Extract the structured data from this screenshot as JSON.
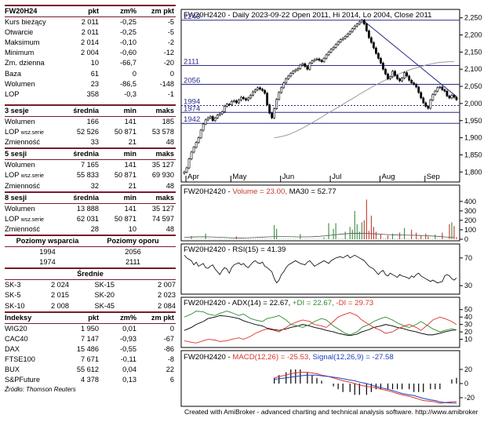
{
  "quote": {
    "header": [
      "FW20H24",
      "pkt",
      "zm%",
      "zm pkt"
    ],
    "rows": [
      [
        "Kurs bieżący",
        "2 011",
        "-0,25",
        "-5"
      ],
      [
        "Otwarcie",
        "2 011",
        "-0,25",
        "-5"
      ],
      [
        "Maksimum",
        "2 014",
        "-0,10",
        "-2"
      ],
      [
        "Minimum",
        "2 004",
        "-0,60",
        "-12"
      ],
      [
        "Zm. dzienna",
        "10",
        "-66,7",
        "-20"
      ],
      [
        "Baza",
        "61",
        "0",
        "0"
      ],
      [
        "Wolumen",
        "23",
        "-86,5",
        "-148"
      ],
      [
        "LOP",
        "358",
        "-0,3",
        "-1"
      ]
    ]
  },
  "sessions": [
    {
      "header": [
        "3 sesje",
        "średnia",
        "min",
        "maks"
      ],
      "rows": [
        [
          "Wolumen",
          "166",
          "141",
          "185"
        ],
        [
          "LOP wsz.serie",
          "52 526",
          "50 871",
          "53 578"
        ],
        [
          "Zmienność",
          "33",
          "21",
          "48"
        ]
      ]
    },
    {
      "header": [
        "5 sesji",
        "średnia",
        "min",
        "maks"
      ],
      "rows": [
        [
          "Wolumen",
          "7 165",
          "141",
          "35 127"
        ],
        [
          "LOP wsz.serie",
          "55 833",
          "50 871",
          "69 930"
        ],
        [
          "Zmienność",
          "32",
          "21",
          "48"
        ]
      ]
    },
    {
      "header": [
        "8 sesji",
        "średnia",
        "min",
        "maks"
      ],
      "rows": [
        [
          "Wolumen",
          "13 888",
          "141",
          "35 127"
        ],
        [
          "LOP wsz.serie",
          "62 031",
          "50 871",
          "74 597"
        ],
        [
          "Zmienność",
          "28",
          "10",
          "48"
        ]
      ]
    }
  ],
  "levels": {
    "support_label": "Poziomy wsparcia",
    "resistance_label": "Poziomy oporu",
    "rows": [
      [
        "1994",
        "2056"
      ],
      [
        "1974",
        "2111"
      ]
    ]
  },
  "averages": {
    "header": "Średnie",
    "rows": [
      [
        "SK-3",
        "2 024",
        "SK-15",
        "2 007"
      ],
      [
        "SK-5",
        "2 015",
        "SK-20",
        "2 023"
      ],
      [
        "SK-10",
        "2 008",
        "SK-45",
        "2 084"
      ]
    ]
  },
  "indices": {
    "header": [
      "Indeksy",
      "pkt",
      "zm%",
      "zm pkt"
    ],
    "rows": [
      [
        "WIG20",
        "1 950",
        "0,01",
        "0"
      ],
      [
        "CAC40",
        "7 147",
        "-0,93",
        "-67"
      ],
      [
        "DAX",
        "15 486",
        "-0,55",
        "-86"
      ],
      [
        "FTSE100",
        "7 671",
        "-0,11",
        "-8"
      ],
      [
        "BUX",
        "55 612",
        "0,04",
        "22"
      ],
      [
        "S&PFuture",
        "4 378",
        "0,13",
        "6"
      ]
    ],
    "source": "Źródło: Thomson Reuters"
  },
  "chart_data": {
    "type": "line",
    "price": {
      "title": "FW20H2420 - Daily 2023-09-22 Open 2011, Hi 2014, Lo 2004, Close 2011",
      "ylim": [
        1780,
        2270
      ],
      "yticks": [
        "1,800",
        "1,850",
        "1,900",
        "1,950",
        "2,000",
        "2,050",
        "2,100",
        "2,150",
        "2,200",
        "2,250"
      ],
      "months": [
        "Apr",
        "May",
        "Jun",
        "Jul",
        "Aug",
        "Sep"
      ],
      "levels": [
        {
          "label": "2243",
          "value": 2243
        },
        {
          "label": "2111",
          "value": 2111
        },
        {
          "label": "2056",
          "value": 2056
        },
        {
          "label": "1994",
          "value": 1994
        },
        {
          "label": "1974",
          "value": 1974
        },
        {
          "label": "1942",
          "value": 1942
        }
      ],
      "close": [
        1800,
        1812,
        1838,
        1858,
        1872,
        1886,
        1900,
        1922,
        1940,
        1952,
        1958,
        1962,
        1950,
        1958,
        1966,
        1970,
        1976,
        1992,
        1998,
        1996,
        2006,
        2008,
        2002,
        2010,
        2018,
        2014,
        2010,
        2016,
        2024,
        2034,
        2040,
        2046,
        2042,
        2038,
        2030,
        1996,
        1972,
        1958,
        1985,
        2012,
        2032,
        2046,
        2060,
        2072,
        2080,
        2088,
        2094,
        2098,
        2102,
        2112,
        2116,
        2108,
        2100,
        2118,
        2124,
        2128,
        2130,
        2126,
        2122,
        2132,
        2142,
        2150,
        2158,
        2164,
        2172,
        2180,
        2186,
        2190,
        2196,
        2203,
        2210,
        2218,
        2226,
        2232,
        2238,
        2243,
        2232,
        2212,
        2192,
        2178,
        2162,
        2146,
        2132,
        2118,
        2100,
        2086,
        2072,
        2078,
        2094,
        2082,
        2072,
        2066,
        2074,
        2090,
        2080,
        2068,
        2060,
        2056,
        2048,
        2032,
        2016,
        2002,
        1992,
        1986,
        2010,
        2026,
        2036,
        2046,
        2048,
        2040,
        2036,
        2022,
        2016,
        2024,
        2018,
        2011
      ],
      "ma_start": [
        1900,
        1902,
        1905,
        1909,
        1915,
        1921,
        1928,
        1936,
        1944,
        1952,
        1960,
        1969,
        1977,
        1985,
        1993,
        2002,
        2010,
        2018,
        2027,
        2035,
        2043,
        2051,
        2058,
        2065,
        2072,
        2078,
        2084,
        2090,
        2095,
        2100,
        2104,
        2108,
        2112,
        2115,
        2118,
        2120,
        2121,
        2122,
        2122
      ],
      "trendline": [
        [
          76,
          2240
        ],
        [
          115,
          2020
        ]
      ]
    },
    "volume": {
      "title_prefix": "FW20H2420 - ",
      "volume_label": "Volume = 23.00,",
      "ma_label": " MA30 = 52.77",
      "yticks": [
        "0",
        "100",
        "200",
        "300",
        "400"
      ],
      "ylim": [
        0,
        440
      ],
      "spikes": [
        [
          3,
          34
        ],
        [
          9,
          60
        ],
        [
          22,
          30
        ],
        [
          38,
          150
        ],
        [
          39,
          110
        ],
        [
          49,
          55
        ],
        [
          59,
          20
        ],
        [
          61,
          170
        ],
        [
          63,
          110
        ],
        [
          64,
          170
        ],
        [
          68,
          80
        ],
        [
          70,
          130
        ],
        [
          71,
          100
        ],
        [
          72,
          300
        ],
        [
          73,
          160
        ],
        [
          74,
          80
        ],
        [
          75,
          180
        ],
        [
          76,
          200
        ],
        [
          77,
          420
        ],
        [
          78,
          90
        ],
        [
          79,
          250
        ],
        [
          80,
          130
        ],
        [
          81,
          80
        ],
        [
          83,
          50
        ],
        [
          86,
          40
        ],
        [
          88,
          60
        ],
        [
          91,
          70
        ],
        [
          93,
          120
        ],
        [
          96,
          100
        ],
        [
          98,
          70
        ],
        [
          100,
          40
        ],
        [
          102,
          60
        ],
        [
          103,
          30
        ],
        [
          106,
          50
        ],
        [
          109,
          70
        ],
        [
          112,
          160
        ],
        [
          113,
          180
        ],
        [
          114,
          140
        ],
        [
          115,
          23
        ]
      ]
    },
    "rsi": {
      "title_prefix": "FW20H2420 - ",
      "label": "RSI(15) = 41.39",
      "yticks": [
        "30",
        "70"
      ],
      "ylim": [
        20,
        80
      ],
      "values": [
        74,
        70,
        68,
        66,
        60,
        64,
        58,
        62,
        56,
        55,
        58,
        60,
        54,
        50,
        46,
        52,
        56,
        54,
        48,
        56,
        60,
        63,
        60,
        62,
        58,
        56,
        60,
        64,
        66,
        63,
        62,
        64,
        58,
        56,
        50,
        40,
        34,
        38,
        46,
        50,
        56,
        60,
        62,
        64,
        66,
        64,
        62,
        60,
        64,
        66,
        62,
        58,
        60,
        62,
        64,
        66,
        64,
        62,
        66,
        68,
        70,
        72,
        70,
        72,
        74,
        70,
        72,
        74,
        72,
        70,
        68,
        66,
        62,
        58,
        54,
        50,
        46,
        50,
        52,
        46,
        44,
        48,
        46,
        44,
        42,
        46,
        44,
        42,
        40,
        44,
        42,
        46,
        48,
        44,
        42,
        40,
        38,
        36,
        38,
        36,
        34,
        36,
        44,
        46,
        44,
        40,
        38,
        41
      ]
    },
    "adx": {
      "title_prefix": "FW20H2420 - ",
      "label": "ADX(14) = 22.67,",
      "plus_label": " +DI = 22.67,",
      "minus_label": " -DI = 29.73",
      "yticks": [
        "10",
        "20",
        "30",
        "40",
        "50"
      ],
      "ylim": [
        0,
        55
      ],
      "adx": [
        22,
        26,
        30,
        34,
        38,
        40,
        42,
        41,
        40,
        38,
        35,
        32,
        30,
        28,
        25,
        23,
        22,
        24,
        26,
        28,
        30,
        28,
        26,
        24,
        22,
        20,
        18,
        16,
        15,
        17,
        20,
        23,
        26,
        28,
        30,
        28,
        26,
        24,
        22,
        20,
        18,
        16,
        16,
        18,
        20,
        22,
        22.67
      ],
      "plus": [
        40,
        44,
        48,
        47,
        44,
        42,
        45,
        48,
        46,
        42,
        44,
        38,
        36,
        34,
        38,
        40,
        42,
        36,
        30,
        28,
        26,
        30,
        34,
        38,
        36,
        28,
        24,
        18,
        16,
        20,
        26,
        30,
        34,
        38,
        40,
        36,
        32,
        28,
        26,
        30,
        34,
        28,
        24,
        20,
        22,
        24,
        22.67
      ],
      "minus": [
        8,
        6,
        5,
        8,
        10,
        9,
        7,
        8,
        10,
        12,
        10,
        14,
        18,
        22,
        24,
        22,
        20,
        26,
        30,
        34,
        36,
        34,
        30,
        28,
        26,
        34,
        40,
        44,
        46,
        42,
        36,
        30,
        26,
        22,
        18,
        20,
        24,
        28,
        30,
        26,
        22,
        30,
        36,
        40,
        38,
        34,
        29.73
      ]
    },
    "macd": {
      "title_prefix": "FW20H2420 - ",
      "label": "MACD(12,26) = -25.53,",
      "signal_label": " Signal(12,26,9) = -27.58",
      "yticks": [
        "20",
        "0",
        "-20"
      ],
      "ylim": [
        -30,
        30
      ],
      "macd": [
        8,
        10,
        12,
        14,
        15,
        16,
        16,
        15,
        14,
        12,
        10,
        8,
        6,
        4,
        2,
        0,
        -2,
        -4,
        -5,
        -6,
        -8,
        -10,
        -12,
        -14,
        -16,
        -18,
        -20,
        -22,
        -24,
        -25,
        -26,
        -28,
        -27,
        -26,
        -25.53
      ],
      "signal": [
        6,
        7,
        8,
        9,
        10,
        11,
        12,
        12,
        12,
        11,
        10,
        9,
        8,
        7,
        5,
        4,
        2,
        0,
        -2,
        -4,
        -6,
        -8,
        -10,
        -12,
        -14,
        -16,
        -17,
        -19,
        -21,
        -23,
        -24,
        -26,
        -27,
        -27.5,
        -27.58
      ]
    }
  },
  "credit": "Created with AmiBroker - advanced charting and technical analysis software. http://www.amibroker"
}
